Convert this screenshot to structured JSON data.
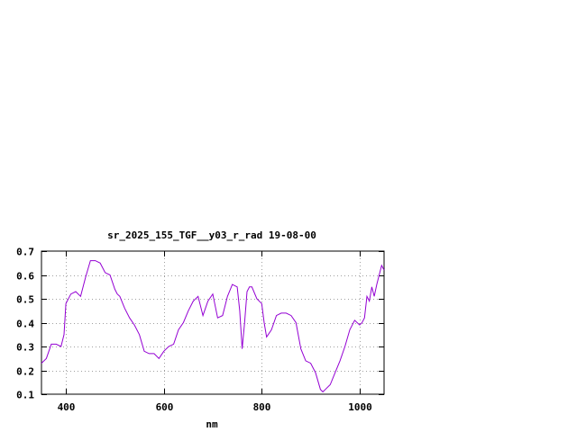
{
  "chart_data": {
    "type": "line",
    "title": "sr_2025_155_TGF__y03_r_rad 19-08-00",
    "xlabel": "nm",
    "ylabel": "",
    "xlim": [
      350,
      1050
    ],
    "ylim": [
      0.1,
      0.7
    ],
    "x_ticks": [
      400,
      600,
      800,
      1000
    ],
    "y_ticks": [
      0.1,
      0.2,
      0.3,
      0.4,
      0.5,
      0.6,
      0.7
    ],
    "grid": true,
    "line_color": "#9400d3",
    "series": [
      {
        "x": [
          350,
          360,
          370,
          380,
          390,
          396,
          400,
          410,
          420,
          430,
          440,
          450,
          460,
          470,
          480,
          490,
          500,
          505,
          510,
          520,
          530,
          540,
          550,
          560,
          570,
          580,
          590,
          600,
          610,
          620,
          630,
          640,
          650,
          660,
          670,
          680,
          690,
          700,
          710,
          720,
          730,
          740,
          750,
          755,
          760,
          765,
          770,
          775,
          780,
          790,
          800,
          805,
          810,
          820,
          830,
          840,
          850,
          860,
          870,
          880,
          890,
          900,
          910,
          920,
          925,
          930,
          940,
          950,
          960,
          970,
          980,
          990,
          1000,
          1005,
          1010,
          1015,
          1020,
          1025,
          1030,
          1035,
          1040,
          1045,
          1050
        ],
        "values": [
          0.23,
          0.25,
          0.31,
          0.31,
          0.3,
          0.35,
          0.48,
          0.52,
          0.53,
          0.51,
          0.59,
          0.66,
          0.66,
          0.65,
          0.61,
          0.6,
          0.54,
          0.52,
          0.51,
          0.46,
          0.42,
          0.39,
          0.35,
          0.28,
          0.27,
          0.27,
          0.25,
          0.28,
          0.3,
          0.31,
          0.37,
          0.4,
          0.45,
          0.49,
          0.51,
          0.43,
          0.49,
          0.52,
          0.42,
          0.43,
          0.51,
          0.56,
          0.55,
          0.45,
          0.29,
          0.4,
          0.53,
          0.55,
          0.55,
          0.5,
          0.48,
          0.4,
          0.34,
          0.37,
          0.43,
          0.44,
          0.44,
          0.43,
          0.4,
          0.29,
          0.24,
          0.23,
          0.19,
          0.12,
          0.11,
          0.12,
          0.14,
          0.19,
          0.24,
          0.3,
          0.37,
          0.41,
          0.39,
          0.4,
          0.42,
          0.51,
          0.49,
          0.55,
          0.51,
          0.56,
          0.6,
          0.64,
          0.62
        ]
      }
    ]
  }
}
